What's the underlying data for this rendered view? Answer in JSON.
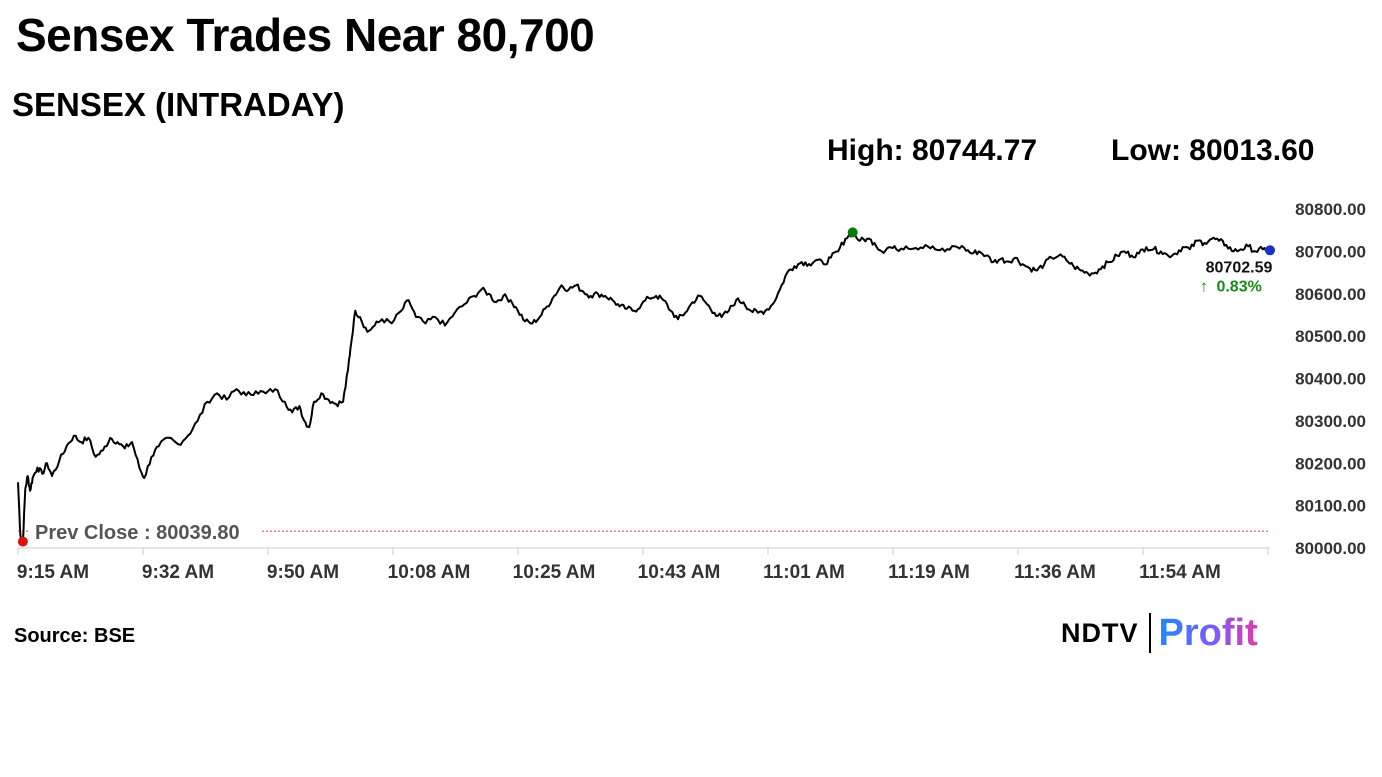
{
  "headline": "Sensex Trades Near 80,700",
  "subtitle": "SENSEX (INTRADAY)",
  "stats": {
    "high": "High: 80744.77",
    "low": "Low: 80013.60"
  },
  "source": "Source: BSE",
  "logo": {
    "brand": "NDTV",
    "sub": "Profit"
  },
  "colors": {
    "line": "#000000",
    "high_dot": "#0a7a0a",
    "low_dot": "#e01010",
    "last_dot": "#1a2fc7",
    "up": "#1a8a1a",
    "prev_close_line": "#e04040",
    "axis_text": "#333333"
  },
  "chart_data": {
    "type": "line",
    "title": "SENSEX (INTRADAY)",
    "xlabel": "",
    "ylabel": "",
    "ylim": [
      80000,
      80800
    ],
    "yticks": [
      "80800.00",
      "80700.00",
      "80600.00",
      "80500.00",
      "80400.00",
      "80300.00",
      "80200.00",
      "80100.00",
      "80000.00"
    ],
    "xticks": [
      "9:15 AM",
      "9:32 AM",
      "9:50 AM",
      "10:08 AM",
      "10:25 AM",
      "10:43 AM",
      "11:01 AM",
      "11:19 AM",
      "11:36 AM",
      "11:54 AM"
    ],
    "prev_close_label": "Prev Close : 80039.80",
    "prev_close": 80039.8,
    "last_value_label": "80702.59",
    "change_label": "0.83%",
    "change_arrow": "↑",
    "grid": false,
    "series": [
      {
        "values": [
          [
            0,
            80155
          ],
          [
            1,
            80030
          ],
          [
            2,
            80015
          ],
          [
            3,
            80140
          ],
          [
            4,
            80170
          ],
          [
            5,
            80135
          ],
          [
            6,
            80165
          ],
          [
            8,
            80190
          ],
          [
            10,
            80175
          ],
          [
            12,
            80200
          ],
          [
            14,
            80170
          ],
          [
            17,
            80205
          ],
          [
            20,
            80240
          ],
          [
            23,
            80265
          ],
          [
            26,
            80250
          ],
          [
            29,
            80260
          ],
          [
            32,
            80215
          ],
          [
            35,
            80230
          ],
          [
            38,
            80260
          ],
          [
            41,
            80250
          ],
          [
            44,
            80235
          ],
          [
            47,
            80250
          ],
          [
            50,
            80190
          ],
          [
            52,
            80165
          ],
          [
            55,
            80215
          ],
          [
            58,
            80240
          ],
          [
            62,
            80260
          ],
          [
            66,
            80245
          ],
          [
            70,
            80265
          ],
          [
            74,
            80300
          ],
          [
            78,
            80345
          ],
          [
            82,
            80365
          ],
          [
            86,
            80350
          ],
          [
            90,
            80375
          ],
          [
            94,
            80360
          ],
          [
            98,
            80370
          ],
          [
            102,
            80365
          ],
          [
            106,
            80375
          ],
          [
            110,
            80345
          ],
          [
            113,
            80320
          ],
          [
            116,
            80335
          ],
          [
            118,
            80300
          ],
          [
            120,
            80285
          ],
          [
            122,
            80345
          ],
          [
            125,
            80365
          ],
          [
            128,
            80350
          ],
          [
            131,
            80340
          ],
          [
            134,
            80345
          ],
          [
            136,
            80420
          ],
          [
            137,
            80470
          ],
          [
            139,
            80560
          ],
          [
            141,
            80545
          ],
          [
            144,
            80510
          ],
          [
            147,
            80525
          ],
          [
            150,
            80540
          ],
          [
            154,
            80530
          ],
          [
            158,
            80560
          ],
          [
            161,
            80585
          ],
          [
            164,
            80545
          ],
          [
            168,
            80530
          ],
          [
            172,
            80545
          ],
          [
            176,
            80525
          ],
          [
            180,
            80555
          ],
          [
            184,
            80575
          ],
          [
            188,
            80595
          ],
          [
            191,
            80610
          ],
          [
            194,
            80600
          ],
          [
            197,
            80580
          ],
          [
            200,
            80595
          ],
          [
            203,
            80585
          ],
          [
            206,
            80560
          ],
          [
            209,
            80535
          ],
          [
            212,
            80530
          ],
          [
            215,
            80545
          ],
          [
            218,
            80570
          ],
          [
            221,
            80595
          ],
          [
            224,
            80620
          ],
          [
            227,
            80610
          ],
          [
            230,
            80620
          ],
          [
            233,
            80605
          ],
          [
            236,
            80595
          ],
          [
            239,
            80600
          ],
          [
            242,
            80595
          ],
          [
            245,
            80585
          ],
          [
            248,
            80570
          ],
          [
            251,
            80565
          ],
          [
            254,
            80560
          ],
          [
            257,
            80575
          ],
          [
            260,
            80590
          ],
          [
            263,
            80595
          ],
          [
            266,
            80585
          ],
          [
            269,
            80560
          ],
          [
            272,
            80540
          ],
          [
            275,
            80555
          ],
          [
            278,
            80580
          ],
          [
            281,
            80595
          ],
          [
            284,
            80575
          ],
          [
            287,
            80555
          ],
          [
            290,
            80545
          ],
          [
            293,
            80560
          ],
          [
            296,
            80585
          ],
          [
            299,
            80580
          ],
          [
            302,
            80560
          ],
          [
            305,
            80555
          ],
          [
            308,
            80560
          ],
          [
            311,
            80575
          ],
          [
            314,
            80610
          ],
          [
            317,
            80650
          ],
          [
            320,
            80665
          ],
          [
            323,
            80675
          ],
          [
            326,
            80670
          ],
          [
            329,
            80680
          ],
          [
            332,
            80670
          ],
          [
            335,
            80685
          ],
          [
            338,
            80700
          ],
          [
            341,
            80730
          ],
          [
            344,
            80744.77
          ],
          [
            347,
            80725
          ],
          [
            350,
            80730
          ],
          [
            353,
            80720
          ],
          [
            356,
            80700
          ],
          [
            359,
            80710
          ],
          [
            362,
            80705
          ],
          [
            366,
            80712
          ],
          [
            370,
            80708
          ],
          [
            374,
            80715
          ],
          [
            378,
            80705
          ],
          [
            382,
            80700
          ],
          [
            386,
            80712
          ],
          [
            390,
            80708
          ],
          [
            393,
            80695
          ],
          [
            396,
            80700
          ],
          [
            399,
            80690
          ],
          [
            402,
            80675
          ],
          [
            405,
            80682
          ],
          [
            408,
            80676
          ],
          [
            411,
            80685
          ],
          [
            414,
            80670
          ],
          [
            417,
            80660
          ],
          [
            420,
            80655
          ],
          [
            423,
            80670
          ],
          [
            426,
            80685
          ],
          [
            429,
            80690
          ],
          [
            432,
            80680
          ],
          [
            435,
            80665
          ],
          [
            438,
            80655
          ],
          [
            441,
            80648
          ],
          [
            444,
            80650
          ],
          [
            447,
            80665
          ],
          [
            450,
            80675
          ],
          [
            453,
            80690
          ],
          [
            456,
            80700
          ],
          [
            459,
            80690
          ],
          [
            462,
            80695
          ],
          [
            465,
            80710
          ],
          [
            468,
            80705
          ],
          [
            471,
            80700
          ],
          [
            474,
            80690
          ],
          [
            477,
            80695
          ],
          [
            480,
            80710
          ],
          [
            483,
            80705
          ],
          [
            486,
            80725
          ],
          [
            489,
            80720
          ],
          [
            492,
            80730
          ],
          [
            495,
            80725
          ],
          [
            498,
            80715
          ],
          [
            501,
            80700
          ],
          [
            504,
            80705
          ],
          [
            507,
            80712
          ],
          [
            510,
            80700
          ],
          [
            513,
            80705
          ],
          [
            516,
            80702.59
          ]
        ]
      }
    ]
  }
}
